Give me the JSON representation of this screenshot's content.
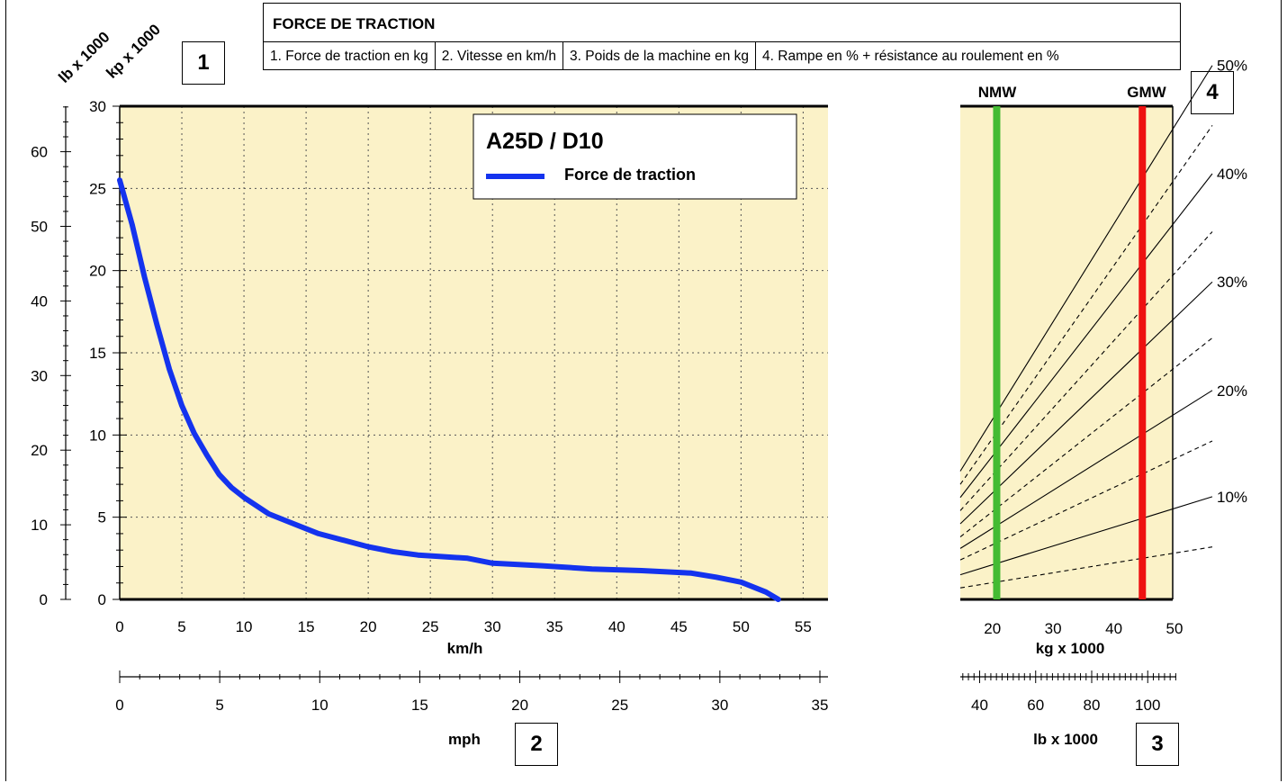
{
  "header": {
    "title": "FORCE DE TRACTION",
    "items": [
      "1. Force de traction en kg",
      "2. Vitesse en km/h",
      "3. Poids de la machine en kg",
      "4. Rampe en % + résistance au roulement en %"
    ]
  },
  "boxes": {
    "b1": "1",
    "b2": "2",
    "b3": "3",
    "b4": "4"
  },
  "colors": {
    "plot_bg": "#fbf2c8",
    "curve": "#1433ee",
    "nmw_line": "#44bb33",
    "gmw_line": "#ee1111",
    "grid": "#555555"
  },
  "chart_data": [
    {
      "type": "line",
      "title": "A25D / D10",
      "legend": {
        "label": "Force de traction",
        "placement": "top-right"
      },
      "xlabel": "km/h",
      "ylabel": "kp x 1000",
      "xlim": [
        0,
        57
      ],
      "ylim": [
        0,
        30
      ],
      "x_ticks": [
        "0",
        "5",
        "10",
        "15",
        "20",
        "25",
        "30",
        "35",
        "40",
        "45",
        "50",
        "55"
      ],
      "y_ticks": [
        "0",
        "5",
        "10",
        "15",
        "20",
        "25",
        "30"
      ],
      "grid": true,
      "secondary_y_axis": {
        "label": "lb x 1000",
        "ticks": [
          "0",
          "10",
          "20",
          "30",
          "40",
          "50",
          "60"
        ],
        "lim": [
          0,
          66.1
        ]
      },
      "secondary_x_axis": {
        "label": "mph",
        "ticks": [
          "0",
          "5",
          "10",
          "15",
          "20",
          "25",
          "30",
          "35"
        ],
        "lim": [
          0,
          35
        ]
      },
      "series": [
        {
          "name": "Force de traction",
          "x": [
            0,
            1,
            2,
            3,
            4,
            5,
            6,
            7,
            8,
            9,
            10,
            12,
            14,
            16,
            18,
            20,
            22,
            24,
            26,
            28,
            29,
            30,
            34,
            38,
            42,
            46,
            48,
            50,
            52,
            53
          ],
          "values": [
            25.5,
            22.8,
            19.6,
            16.7,
            14.0,
            11.8,
            10.1,
            8.8,
            7.6,
            6.8,
            6.2,
            5.2,
            4.6,
            4.0,
            3.6,
            3.2,
            2.9,
            2.7,
            2.6,
            2.5,
            2.35,
            2.2,
            2.05,
            1.85,
            1.75,
            1.6,
            1.35,
            1.05,
            0.45,
            0.0
          ]
        }
      ]
    },
    {
      "type": "line",
      "title": "",
      "xlabel": "kg x 1000",
      "xlim": [
        15,
        50
      ],
      "x_ticks": [
        "20",
        "30",
        "40",
        "50"
      ],
      "secondary_x_axis": {
        "label": "lb x 1000",
        "ticks": [
          "40",
          "60",
          "80",
          "100"
        ],
        "lim": [
          33.1,
          110.2
        ]
      },
      "reference_lines": [
        {
          "name": "NMW",
          "x": 21
        },
        {
          "name": "GMW",
          "x": 45
        }
      ],
      "series": [
        {
          "name": "10%",
          "style": "solid",
          "x": [
            15,
            50
          ],
          "values": [
            1.5,
            5.5
          ]
        },
        {
          "name": "",
          "style": "dashed",
          "x": [
            15,
            50
          ],
          "values": [
            0.7,
            2.8
          ]
        },
        {
          "name": "",
          "style": "dashed",
          "x": [
            15,
            50
          ],
          "values": [
            2.4,
            8.5
          ]
        },
        {
          "name": "20%",
          "style": "solid",
          "x": [
            15,
            50
          ],
          "values": [
            3.1,
            11.2
          ]
        },
        {
          "name": "",
          "style": "dashed",
          "x": [
            15,
            50
          ],
          "values": [
            3.8,
            14.0
          ]
        },
        {
          "name": "30%",
          "style": "solid",
          "x": [
            15,
            50
          ],
          "values": [
            4.6,
            17.0
          ]
        },
        {
          "name": "",
          "style": "dashed",
          "x": [
            15,
            50
          ],
          "values": [
            5.4,
            19.7
          ]
        },
        {
          "name": "40%",
          "style": "solid",
          "x": [
            15,
            50
          ],
          "values": [
            6.2,
            22.8
          ]
        },
        {
          "name": "",
          "style": "dashed",
          "x": [
            15,
            50
          ],
          "values": [
            7.0,
            25.4
          ]
        },
        {
          "name": "50%",
          "style": "solid",
          "x": [
            15,
            50
          ],
          "values": [
            7.8,
            28.6
          ]
        }
      ],
      "line_labels": [
        "10%",
        "20%",
        "30%",
        "40%",
        "50%"
      ]
    }
  ]
}
